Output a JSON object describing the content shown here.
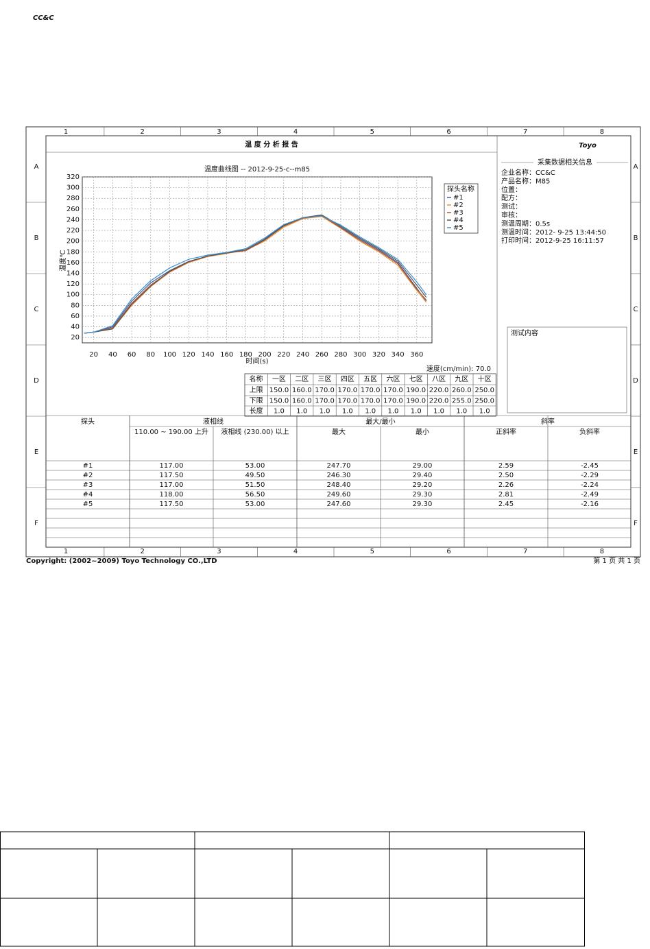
{
  "header": {
    "logo": "CC&C"
  },
  "document": {
    "columns": [
      "1",
      "2",
      "3",
      "4",
      "5",
      "6",
      "7",
      "8"
    ],
    "rows": [
      "A",
      "B",
      "C",
      "D",
      "E",
      "F"
    ],
    "title": "温 度 分 析 报 告",
    "brand": "Toyo",
    "speed": "速度(cm/min): 70.0",
    "zones": {
      "header": [
        "名称",
        "一区",
        "二区",
        "三区",
        "四区",
        "五区",
        "六区",
        "七区",
        "八区",
        "九区",
        "十区"
      ],
      "rows": [
        [
          "上限",
          "150.0",
          "160.0",
          "170.0",
          "170.0",
          "170.0",
          "170.0",
          "190.0",
          "220.0",
          "260.0",
          "250.0"
        ],
        [
          "下限",
          "150.0",
          "160.0",
          "170.0",
          "170.0",
          "170.0",
          "170.0",
          "190.0",
          "220.0",
          "255.0",
          "250.0"
        ],
        [
          "长度",
          "1.0",
          "1.0",
          "1.0",
          "1.0",
          "1.0",
          "1.0",
          "1.0",
          "1.0",
          "1.0",
          "1.0"
        ]
      ]
    },
    "info": {
      "heading": "采集数据相关信息",
      "fields": [
        "企业名称：CC&C",
        "产品名称：M85",
        "位置：",
        "配方：",
        "测试：",
        "审核：",
        "测温周期：0.5s",
        "测温时间：2012- 9-25 13:44:50",
        "打印时间：2012-9-25 16:11:57"
      ]
    },
    "test_box": "测试内容",
    "results": {
      "header1": [
        "探头",
        "液相线",
        "最大/最小",
        "斜率"
      ],
      "header2": [
        "110.00 ~ 190.00 上升",
        "液相线 (230.00) 以上",
        "最大",
        "最小",
        "正斜率",
        "负斜率"
      ],
      "rows": [
        [
          "#1",
          "117.00",
          "53.00",
          "247.70",
          "29.00",
          "2.59",
          "-2.45"
        ],
        [
          "#2",
          "117.50",
          "49.50",
          "246.30",
          "29.40",
          "2.50",
          "-2.29"
        ],
        [
          "#3",
          "117.00",
          "51.50",
          "248.40",
          "29.20",
          "2.26",
          "-2.24"
        ],
        [
          "#4",
          "118.00",
          "56.50",
          "249.60",
          "29.30",
          "2.81",
          "-2.49"
        ],
        [
          "#5",
          "117.50",
          "53.00",
          "247.60",
          "29.30",
          "2.45",
          "-2.16"
        ]
      ]
    },
    "copyright": "Copyright: (2002~2009) Toyo Technology CO.,LTD",
    "page": "第 1 页 共 1 页"
  },
  "chart_data": {
    "type": "line",
    "title": "温度曲线图 -- 2012-9-25-c--m85",
    "x_label": "时间(s)",
    "y_label": "温度℃",
    "legend_title": "探头名称",
    "legend": "upper-right",
    "grid": true,
    "xlim": [
      8,
      376
    ],
    "ylim": [
      10,
      320
    ],
    "xticks": [
      20,
      40,
      60,
      80,
      100,
      120,
      140,
      160,
      180,
      200,
      220,
      240,
      260,
      280,
      300,
      320,
      340,
      360
    ],
    "yticks": [
      20,
      40,
      60,
      80,
      100,
      120,
      140,
      160,
      180,
      200,
      220,
      240,
      260,
      280,
      300,
      320
    ],
    "x": [
      10,
      20,
      40,
      60,
      80,
      100,
      120,
      140,
      160,
      180,
      200,
      220,
      240,
      260,
      280,
      300,
      320,
      340,
      360,
      370
    ],
    "series": [
      {
        "name": "#1",
        "color": "#3b5ba0",
        "values": [
          28,
          30,
          40,
          88,
          122,
          145,
          162,
          172,
          178,
          184,
          204,
          230,
          243,
          247,
          226,
          204,
          184,
          160,
          112,
          88
        ]
      },
      {
        "name": "#2",
        "color": "#e8923a",
        "values": [
          28,
          30,
          36,
          80,
          115,
          142,
          160,
          171,
          177,
          183,
          200,
          226,
          242,
          246,
          224,
          200,
          180,
          155,
          108,
          86
        ]
      },
      {
        "name": "#3",
        "color": "#b0562e",
        "values": [
          28,
          30,
          38,
          84,
          118,
          143,
          161,
          172,
          178,
          182,
          202,
          228,
          243,
          248,
          225,
          202,
          182,
          158,
          110,
          90
        ]
      },
      {
        "name": "#4",
        "color": "#555555",
        "values": [
          28,
          30,
          36,
          82,
          116,
          144,
          162,
          172,
          178,
          184,
          203,
          229,
          244,
          249,
          228,
          206,
          186,
          163,
          118,
          95
        ]
      },
      {
        "name": "#5",
        "color": "#3a8fd0",
        "values": [
          28,
          30,
          42,
          92,
          126,
          150,
          166,
          174,
          179,
          186,
          206,
          231,
          244,
          247,
          230,
          208,
          188,
          166,
          124,
          100
        ]
      }
    ]
  }
}
